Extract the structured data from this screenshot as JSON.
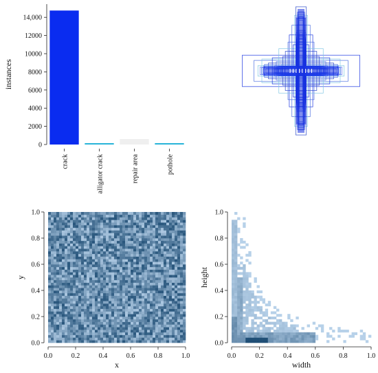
{
  "chart_data": [
    {
      "type": "bar",
      "categories": [
        "crack",
        "alligator crack",
        "repair area",
        "pothole"
      ],
      "values": [
        14750,
        130,
        600,
        80
      ],
      "ylabel": "instances",
      "ylim": [
        0,
        15000
      ],
      "yticks": [
        "0",
        "2000",
        "4000",
        "6000",
        "8000",
        "10000",
        "12000",
        "14,000"
      ],
      "colors": [
        "#0a2cf0",
        "#27b4d8",
        "#efefef",
        "#27b4d8"
      ]
    },
    {
      "type": "scatter",
      "kind": "box-overlay",
      "xlim": [
        0,
        1
      ],
      "ylim": [
        0,
        1
      ],
      "boxes": [
        {
          "w": 0.9,
          "h": 0.24
        },
        {
          "w": 0.72,
          "h": 0.16
        },
        {
          "w": 0.6,
          "h": 0.18
        },
        {
          "w": 0.5,
          "h": 0.12
        },
        {
          "w": 0.44,
          "h": 0.2
        },
        {
          "w": 0.38,
          "h": 0.14
        },
        {
          "w": 0.3,
          "h": 0.1
        },
        {
          "w": 0.24,
          "h": 0.3
        },
        {
          "w": 0.18,
          "h": 0.55
        },
        {
          "w": 0.14,
          "h": 0.7
        },
        {
          "w": 0.1,
          "h": 0.85
        },
        {
          "w": 0.08,
          "h": 0.98
        },
        {
          "w": 0.06,
          "h": 0.62
        },
        {
          "w": 0.2,
          "h": 0.44
        },
        {
          "w": 0.34,
          "h": 0.34
        },
        {
          "w": 0.28,
          "h": 0.22
        },
        {
          "w": 0.12,
          "h": 0.4
        },
        {
          "w": 0.56,
          "h": 0.1
        },
        {
          "w": 0.66,
          "h": 0.08
        },
        {
          "w": 0.04,
          "h": 0.9
        }
      ],
      "colors": [
        "#1530e0",
        "#4a6fe0",
        "#7fc6e4",
        "#2a48c8"
      ]
    },
    {
      "type": "heatmap",
      "xlabel": "x",
      "ylabel": "y",
      "xlim": [
        0,
        1
      ],
      "ylim": [
        0,
        1
      ],
      "xticks": [
        "0.0",
        "0.2",
        "0.4",
        "0.6",
        "0.8",
        "1.0"
      ],
      "yticks": [
        "0.0",
        "0.2",
        "0.4",
        "0.6",
        "0.8",
        "1.0"
      ],
      "bins": 50,
      "colors": {
        "light": "#c5ddf4",
        "dark": "#17476f"
      }
    },
    {
      "type": "heatmap",
      "xlabel": "width",
      "ylabel": "height",
      "xlim": [
        0,
        1
      ],
      "ylim": [
        0,
        1
      ],
      "xticks": [
        "0.0",
        "0.2",
        "0.4",
        "0.6",
        "0.8",
        "1.0"
      ],
      "yticks": [
        "0.0",
        "0.2",
        "0.4",
        "0.6",
        "0.8",
        "1.0"
      ],
      "bins": 50,
      "colors": {
        "light": "#c5ddf4",
        "dark": "#17476f"
      }
    }
  ]
}
